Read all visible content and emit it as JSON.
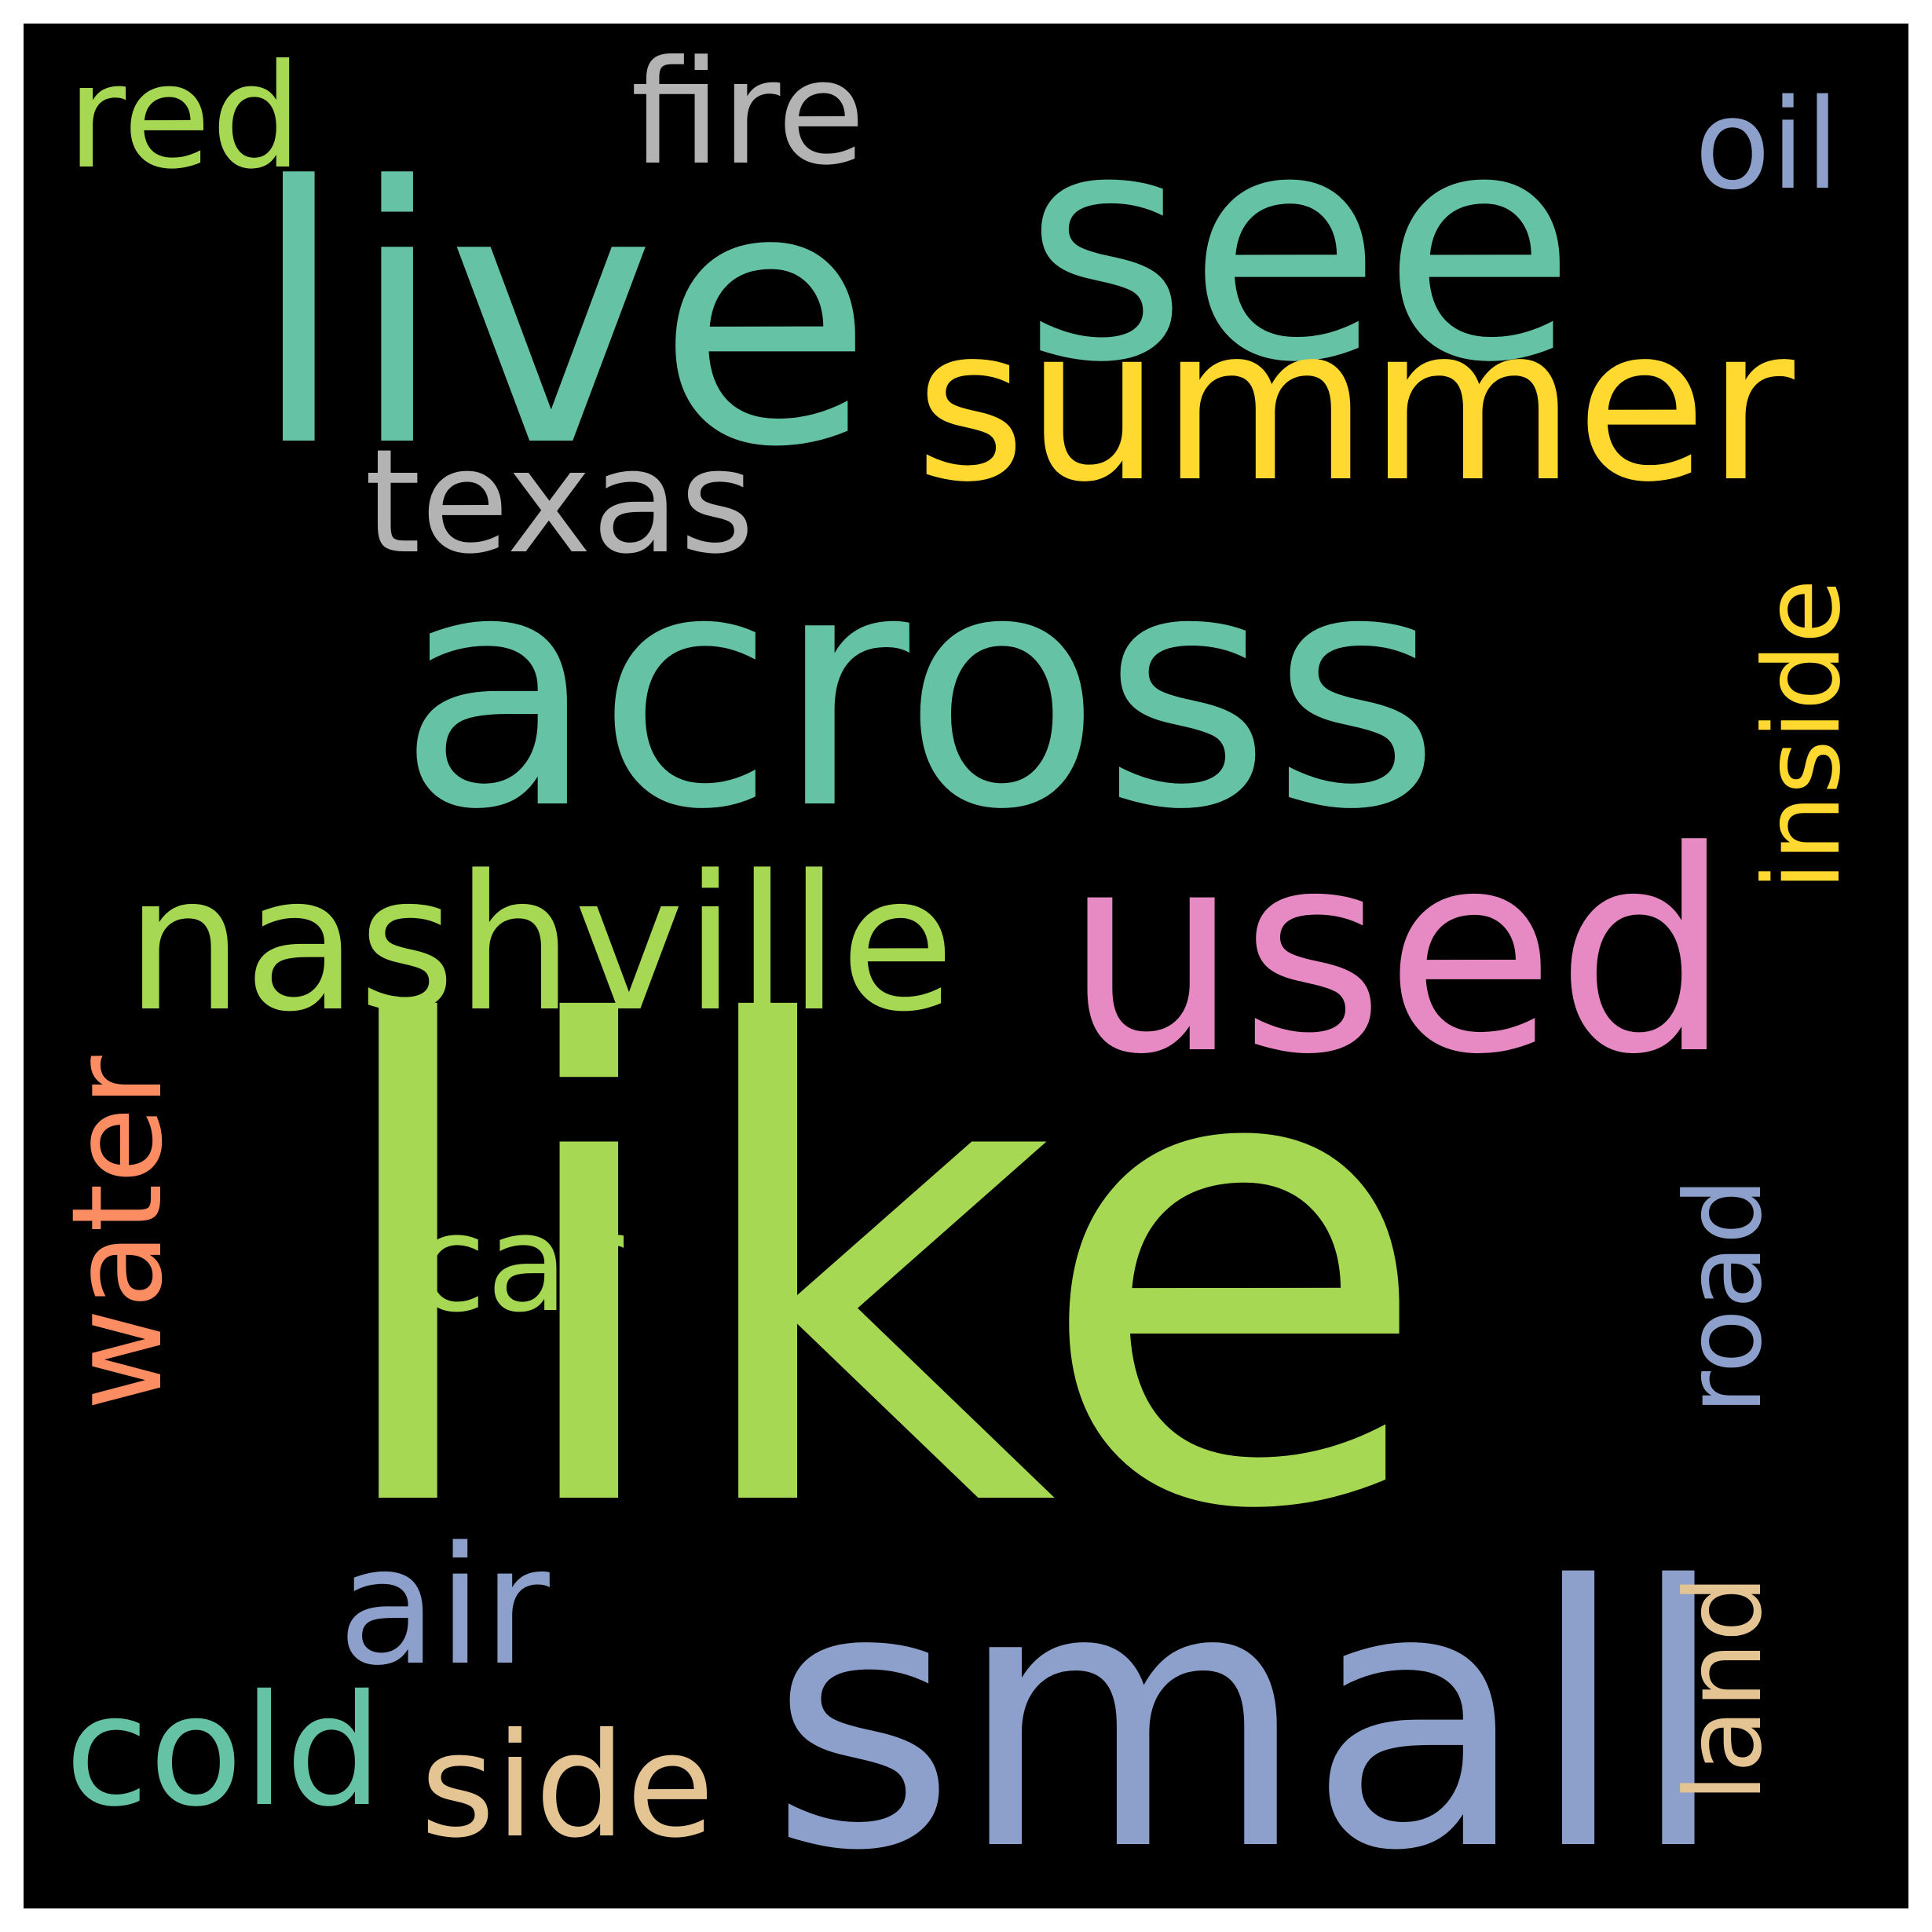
{
  "palette": {
    "background": "#000000",
    "frame": "#ffffff",
    "teal": "#66c2a5",
    "green": "#a6d854",
    "blue": "#8da0cb",
    "pink": "#e78ac3",
    "yellow": "#ffd92f",
    "orange": "#fc8d62",
    "tan": "#e5c494",
    "gray": "#b3b3b3"
  },
  "words": [
    {
      "id": "like",
      "text": "like",
      "color": "#a6d854",
      "orientation": "horizontal"
    },
    {
      "id": "across",
      "text": "across",
      "color": "#66c2a5",
      "orientation": "horizontal"
    },
    {
      "id": "see",
      "text": "see",
      "color": "#66c2a5",
      "orientation": "horizontal"
    },
    {
      "id": "live",
      "text": "live",
      "color": "#66c2a5",
      "orientation": "horizontal"
    },
    {
      "id": "small",
      "text": "small",
      "color": "#8da0cb",
      "orientation": "horizontal"
    },
    {
      "id": "used",
      "text": "used",
      "color": "#e78ac3",
      "orientation": "horizontal"
    },
    {
      "id": "summer",
      "text": "summer",
      "color": "#ffd92f",
      "orientation": "horizontal"
    },
    {
      "id": "nashville",
      "text": "nashville",
      "color": "#a6d854",
      "orientation": "horizontal"
    },
    {
      "id": "texas",
      "text": "texas",
      "color": "#b3b3b3",
      "orientation": "horizontal"
    },
    {
      "id": "fire",
      "text": "fire",
      "color": "#b3b3b3",
      "orientation": "horizontal"
    },
    {
      "id": "red",
      "text": "red",
      "color": "#a6d854",
      "orientation": "horizontal"
    },
    {
      "id": "oil",
      "text": "oil",
      "color": "#8da0cb",
      "orientation": "horizontal"
    },
    {
      "id": "inside",
      "text": "inside",
      "color": "#ffd92f",
      "orientation": "vertical"
    },
    {
      "id": "road",
      "text": "road",
      "color": "#8da0cb",
      "orientation": "vertical"
    },
    {
      "id": "land",
      "text": "land",
      "color": "#e5c494",
      "orientation": "vertical"
    },
    {
      "id": "water",
      "text": "water",
      "color": "#fc8d62",
      "orientation": "vertical"
    },
    {
      "id": "car",
      "text": "car",
      "color": "#a6d854",
      "orientation": "horizontal"
    },
    {
      "id": "air",
      "text": "air",
      "color": "#8da0cb",
      "orientation": "horizontal"
    },
    {
      "id": "cold",
      "text": "cold",
      "color": "#66c2a5",
      "orientation": "horizontal"
    },
    {
      "id": "side",
      "text": "side",
      "color": "#e5c494",
      "orientation": "horizontal"
    }
  ]
}
